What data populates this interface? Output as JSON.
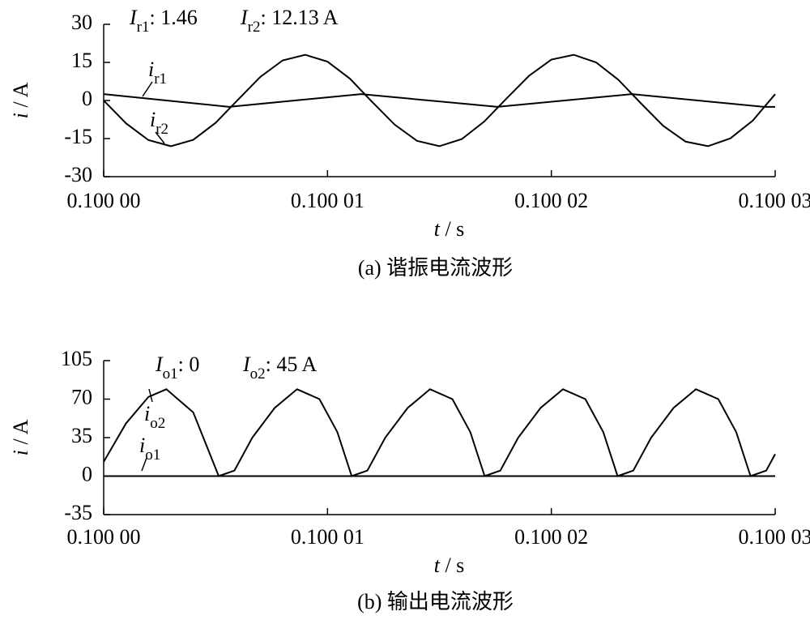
{
  "chart_data": [
    {
      "type": "line",
      "caption": "(a)  谐振电流波形",
      "annotations": [
        {
          "symbol": "I",
          "sub": "r1",
          "text": ": 1.46"
        },
        {
          "symbol": "I",
          "sub": "r2",
          "text": ": 12.13 A"
        }
      ],
      "ylabel": {
        "symbol": "i",
        "text": " / A"
      },
      "xlabel": {
        "symbol": "t",
        "text": " / s"
      },
      "xlim": [
        0.1,
        0.10003
      ],
      "xticks": [
        {
          "value": 0.1,
          "label": "0.100 00"
        },
        {
          "value": 0.10001,
          "label": "0.100 01"
        },
        {
          "value": 0.10002,
          "label": "0.100 02"
        },
        {
          "value": 0.10003,
          "label": "0.100 03"
        }
      ],
      "ylim": [
        -30,
        30
      ],
      "yticks": [
        -30,
        -15,
        0,
        15,
        30
      ],
      "series": [
        {
          "label": {
            "symbol": "i",
            "sub": "r1"
          },
          "color": "#000000",
          "x": [
            0.1,
            0.1000056,
            0.1000115,
            0.1000176,
            0.1000236,
            0.1000295,
            0.10003
          ],
          "values": [
            2.5,
            -2.5,
            2.5,
            -2.5,
            2.5,
            -2.5,
            -2.5
          ]
        },
        {
          "label": {
            "symbol": "i",
            "sub": "r2"
          },
          "color": "#000000",
          "x": [
            0.1,
            0.100001,
            0.100002,
            0.100003,
            0.100004,
            0.100005,
            0.100006,
            0.100007,
            0.100008,
            0.100009,
            0.10001,
            0.100011,
            0.100012,
            0.100013,
            0.100014,
            0.100015,
            0.100016,
            0.100017,
            0.100018,
            0.100019,
            0.10002,
            0.100021,
            0.100022,
            0.100023,
            0.100024,
            0.100025,
            0.100026,
            0.100027,
            0.100028,
            0.100029,
            0.10003
          ],
          "values": [
            0,
            -9.0,
            -15.6,
            -18.0,
            -15.5,
            -8.8,
            0.3,
            9.3,
            15.8,
            18.0,
            15.3,
            8.6,
            -0.6,
            -9.5,
            -15.9,
            -18.0,
            -15.2,
            -8.3,
            0.8,
            9.7,
            16.1,
            18.0,
            15.0,
            8.1,
            -1.1,
            -10.0,
            -16.2,
            -18.0,
            -14.9,
            -7.9,
            2.5
          ]
        }
      ]
    },
    {
      "type": "line",
      "caption": "(b)  输出电流波形",
      "annotations": [
        {
          "symbol": "I",
          "sub": "o1",
          "text": ": 0"
        },
        {
          "symbol": "I",
          "sub": "o2",
          "text": ": 45 A"
        }
      ],
      "ylabel": {
        "symbol": "i",
        "text": " / A"
      },
      "xlabel": {
        "symbol": "t",
        "text": " / s"
      },
      "xlim": [
        0.1,
        0.10003
      ],
      "xticks": [
        {
          "value": 0.1,
          "label": "0.100 00"
        },
        {
          "value": 0.10001,
          "label": "0.100 01"
        },
        {
          "value": 0.10002,
          "label": "0.100 02"
        },
        {
          "value": 0.10003,
          "label": "0.100 03"
        }
      ],
      "ylim": [
        -35,
        105
      ],
      "yticks": [
        -35,
        0,
        35,
        70,
        105
      ],
      "series": [
        {
          "label": {
            "symbol": "i",
            "sub": "o1"
          },
          "color": "#000000",
          "x": [
            0.1,
            0.10003
          ],
          "values": [
            0,
            0
          ]
        },
        {
          "label": {
            "symbol": "i",
            "sub": "o2"
          },
          "color": "#000000",
          "x": [
            0.1,
            0.100001,
            0.100002,
            0.1000028,
            0.100004,
            0.10000514,
            0.10000584,
            0.10000664,
            0.10000764,
            0.10000864,
            0.10000964,
            0.10001044,
            0.10001108,
            0.10001178,
            0.10001258,
            0.10001358,
            0.10001458,
            0.10001558,
            0.10001638,
            0.10001702,
            0.10001772,
            0.10001852,
            0.10001952,
            0.10002052,
            0.10002152,
            0.10002232,
            0.10002296,
            0.10002366,
            0.10002446,
            0.10002546,
            0.10002646,
            0.10002746,
            0.10002826,
            0.1000289,
            0.1000296,
            0.10003
          ],
          "values": [
            13,
            48,
            72,
            79,
            58,
            0,
            5,
            35,
            62,
            79,
            70,
            40,
            0,
            5,
            35,
            62,
            79,
            70,
            40,
            0,
            5,
            35,
            62,
            79,
            70,
            40,
            0,
            5,
            35,
            62,
            79,
            70,
            40,
            0,
            5,
            20
          ]
        }
      ]
    }
  ]
}
